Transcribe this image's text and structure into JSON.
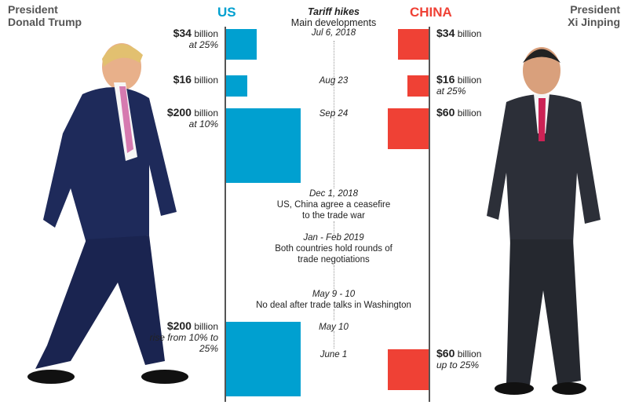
{
  "chart_data": {
    "type": "bar",
    "title": "Tariff hikes",
    "subtitle": "Main developments",
    "colors": {
      "US": "#00a0d0",
      "CHINA": "#ef4135"
    },
    "left_person": "President Donald Trump",
    "right_person": "President Xi Jinping",
    "series_labels": {
      "us": "US",
      "china": "CHINA"
    },
    "events": [
      {
        "date": "Jul 6, 2018",
        "text": "",
        "us": {
          "value": 34,
          "amount": "$34",
          "unit": "billion",
          "note": "at 25%"
        },
        "china": {
          "value": 34,
          "amount": "$34",
          "unit": "billion",
          "note": ""
        }
      },
      {
        "date": "Aug 23",
        "text": "",
        "us": {
          "value": 16,
          "amount": "$16",
          "unit": "billion",
          "note": ""
        },
        "china": {
          "value": 16,
          "amount": "$16",
          "unit": "billion",
          "note": "at 25%"
        }
      },
      {
        "date": "Sep 24",
        "text": "",
        "us": {
          "value": 200,
          "amount": "$200",
          "unit": "billion",
          "note": "at 10%"
        },
        "china": {
          "value": 60,
          "amount": "$60",
          "unit": "billion",
          "note": ""
        }
      },
      {
        "date": "Dec 1, 2018",
        "text": "US, China agree a ceasefire to the trade war"
      },
      {
        "date": "Jan - Feb 2019",
        "text": "Both countries hold rounds of trade negotiations"
      },
      {
        "date": "May 9 - 10",
        "text": "No deal after trade talks in Washington"
      },
      {
        "date": "May 10",
        "text": "",
        "us": {
          "value": 200,
          "amount": "$200",
          "unit": "billion",
          "note": "rise from 10% to 25%"
        }
      },
      {
        "date": "June 1",
        "text": "",
        "china": {
          "value": 60,
          "amount": "$60",
          "unit": "billion",
          "note": "up to 25%"
        }
      }
    ]
  },
  "header": {
    "left_title": "President",
    "left_name": "Donald Trump",
    "right_title": "President",
    "right_name": "Xi Jinping"
  }
}
